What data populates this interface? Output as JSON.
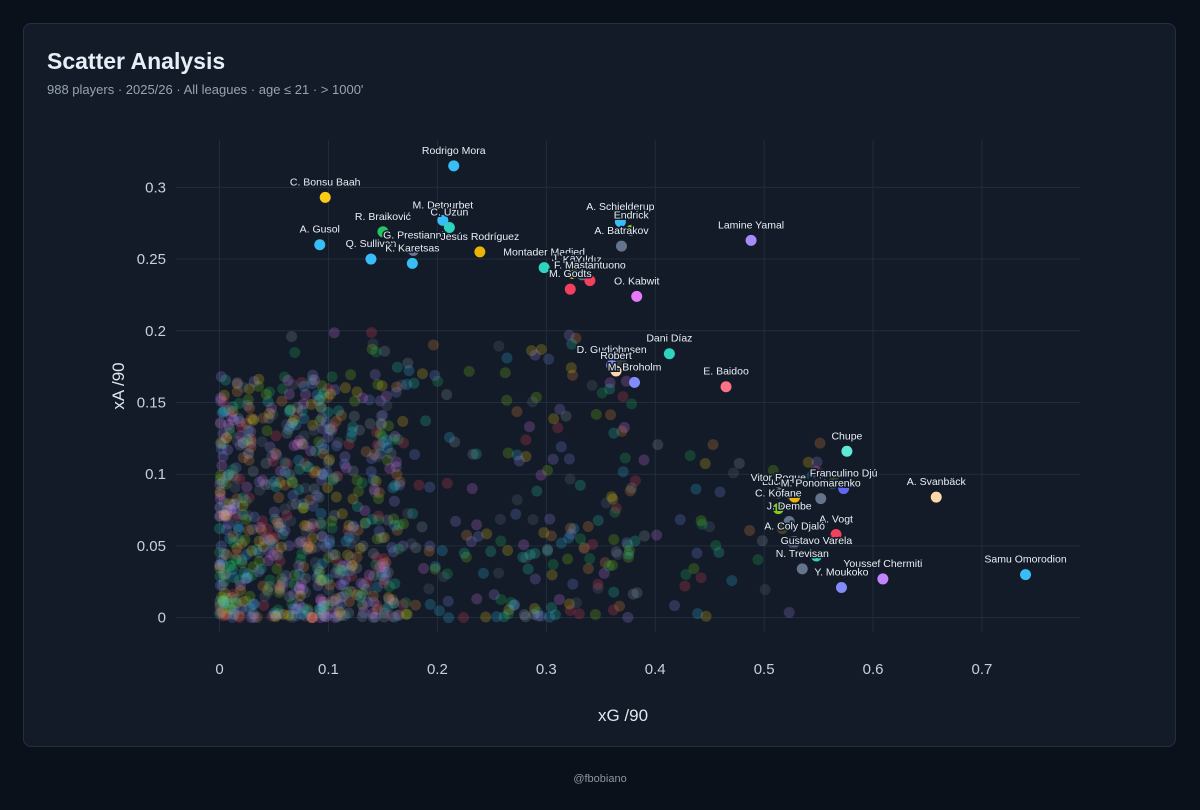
{
  "header": {
    "title": "Scatter Analysis",
    "subtitle": "988 players · 2025/26 · All leagues · age ≤ 21 · > 1000'"
  },
  "footer": {
    "credit": "@fbobiano"
  },
  "chart_data": {
    "type": "scatter",
    "xlabel": "xG /90",
    "ylabel": "xA /90",
    "xlim": [
      -0.04,
      0.79
    ],
    "ylim": [
      -0.01,
      0.333
    ],
    "xticks": [
      0,
      0.1,
      0.2,
      0.3,
      0.4,
      0.5,
      0.6,
      0.7
    ],
    "xtick_labels": [
      "0",
      "0.1",
      "0.2",
      "0.3",
      "0.4",
      "0.5",
      "0.6",
      "0.7"
    ],
    "yticks": [
      0,
      0.05,
      0.1,
      0.15,
      0.2,
      0.25,
      0.3
    ],
    "ytick_labels": [
      "0",
      "0.05",
      "0.1",
      "0.15",
      "0.2",
      "0.25",
      "0.3"
    ],
    "grid": true,
    "labeled_points": [
      {
        "name": "Rodrigo Mora",
        "x": 0.215,
        "y": 0.315,
        "color": "#38bdf8"
      },
      {
        "name": "C. Bonsu Baah",
        "x": 0.097,
        "y": 0.293,
        "color": "#facc15"
      },
      {
        "name": "M. Detourbet",
        "x": 0.205,
        "y": 0.277,
        "color": "#38bdf8"
      },
      {
        "name": "C. Uzun",
        "x": 0.211,
        "y": 0.272,
        "color": "#2dd4bf"
      },
      {
        "name": "R. Braiković",
        "x": 0.15,
        "y": 0.269,
        "color": "#22c55e"
      },
      {
        "name": "A. Gusol",
        "x": 0.092,
        "y": 0.26,
        "color": "#38bdf8"
      },
      {
        "name": "G. Prestianni",
        "x": 0.178,
        "y": 0.256,
        "color": "#64748b"
      },
      {
        "name": "Jesús Rodríguez",
        "x": 0.239,
        "y": 0.255,
        "color": "#eab308"
      },
      {
        "name": "Q. Sullivan",
        "x": 0.139,
        "y": 0.25,
        "color": "#38bdf8"
      },
      {
        "name": "K. Karetsas",
        "x": 0.177,
        "y": 0.247,
        "color": "#38bdf8"
      },
      {
        "name": "A. Schjelderup",
        "x": 0.368,
        "y": 0.276,
        "color": "#38bdf8"
      },
      {
        "name": "Endrick",
        "x": 0.378,
        "y": 0.27,
        "color": "#84cc16"
      },
      {
        "name": "A. Batrakov",
        "x": 0.369,
        "y": 0.259,
        "color": "#64748b"
      },
      {
        "name": "Lamine Yamal",
        "x": 0.488,
        "y": 0.263,
        "color": "#a78bfa"
      },
      {
        "name": "Montader Madjed",
        "x": 0.298,
        "y": 0.244,
        "color": "#2dd4bf"
      },
      {
        "name": "J. Kanga",
        "x": 0.324,
        "y": 0.24,
        "color": "#fbbf24"
      },
      {
        "name": "K. Yıldız",
        "x": 0.333,
        "y": 0.239,
        "color": "#64748b"
      },
      {
        "name": "F. Mastantuono",
        "x": 0.34,
        "y": 0.235,
        "color": "#f43f5e"
      },
      {
        "name": "M. Godts",
        "x": 0.322,
        "y": 0.229,
        "color": "#f43f5e"
      },
      {
        "name": "O. Kabwit",
        "x": 0.383,
        "y": 0.224,
        "color": "#e879f9"
      },
      {
        "name": "Dani Díaz",
        "x": 0.413,
        "y": 0.184,
        "color": "#2dd4bf"
      },
      {
        "name": "D. Gudjohnsen",
        "x": 0.36,
        "y": 0.176,
        "color": "#818cf8"
      },
      {
        "name": "Robert",
        "x": 0.364,
        "y": 0.172,
        "color": "#fed7aa"
      },
      {
        "name": "M. Broholm",
        "x": 0.381,
        "y": 0.164,
        "color": "#818cf8"
      },
      {
        "name": "E. Baidoo",
        "x": 0.465,
        "y": 0.161,
        "color": "#fb7185"
      },
      {
        "name": "Chupe",
        "x": 0.576,
        "y": 0.116,
        "color": "#5eead4"
      },
      {
        "name": "Franculino Djú",
        "x": 0.573,
        "y": 0.09,
        "color": "#6366f1"
      },
      {
        "name": "A. Svanbäck",
        "x": 0.658,
        "y": 0.084,
        "color": "#fed7aa"
      },
      {
        "name": "Lucas Stassin",
        "x": 0.528,
        "y": 0.084,
        "color": "#eab308"
      },
      {
        "name": "Vitor Roque",
        "x": 0.513,
        "y": 0.087,
        "color": "#64748b"
      },
      {
        "name": "M. Ponomarenko",
        "x": 0.552,
        "y": 0.083,
        "color": "#64748b"
      },
      {
        "name": "C. Kofane",
        "x": 0.513,
        "y": 0.076,
        "color": "#84cc16"
      },
      {
        "name": "J. Dembe",
        "x": 0.523,
        "y": 0.067,
        "color": "#64748b"
      },
      {
        "name": "A. Vogt",
        "x": 0.566,
        "y": 0.058,
        "color": "#f43f5e"
      },
      {
        "name": "A. Coly Djaló",
        "x": 0.528,
        "y": 0.053,
        "color": "#64748b"
      },
      {
        "name": "Gustavo Varela",
        "x": 0.548,
        "y": 0.043,
        "color": "#2dd4bf"
      },
      {
        "name": "N. Trevisan",
        "x": 0.535,
        "y": 0.034,
        "color": "#64748b"
      },
      {
        "name": "Youssef Chermiti",
        "x": 0.609,
        "y": 0.027,
        "color": "#c084fc"
      },
      {
        "name": "Y. Moukoko",
        "x": 0.571,
        "y": 0.021,
        "color": "#818cf8"
      },
      {
        "name": "Samu Omorodion",
        "x": 0.74,
        "y": 0.03,
        "color": "#38bdf8"
      }
    ],
    "background_points": {
      "count": 948,
      "colors": [
        "#38bdf8",
        "#a78bfa",
        "#2dd4bf",
        "#facc15",
        "#22c55e",
        "#f43f5e",
        "#fb923c",
        "#e879f9",
        "#64748b",
        "#94a3b8",
        "#818cf8",
        "#84cc16"
      ]
    }
  }
}
